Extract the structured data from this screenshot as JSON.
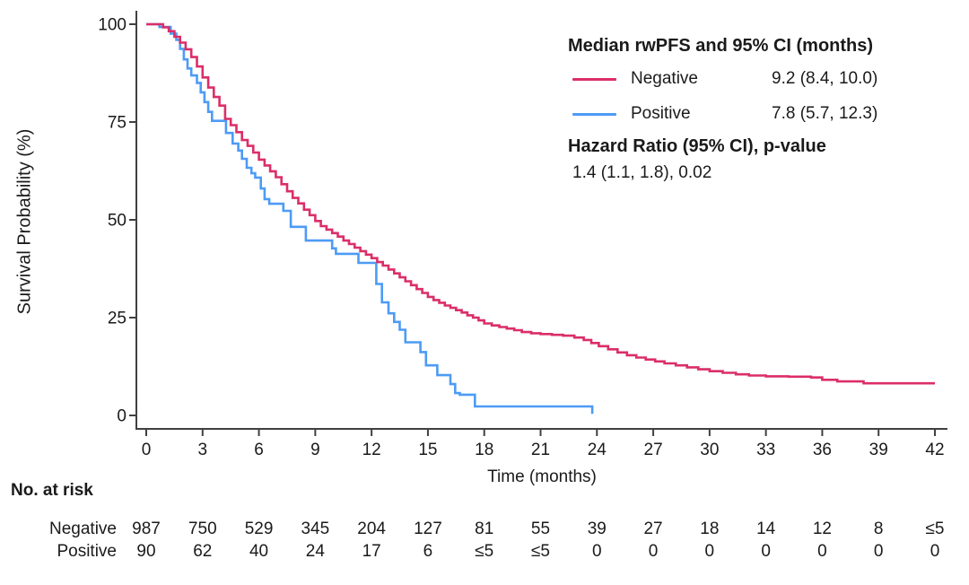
{
  "figure": {
    "background": "#ffffff",
    "text_color": "#1a1a1a",
    "axis_color": "#404040"
  },
  "chart_data": {
    "type": "line",
    "subtype": "kaplan-meier-step-curve",
    "title": "",
    "xlabel": "Time (months)",
    "ylabel": "Survival Probability (%)",
    "xlim": [
      0,
      42
    ],
    "ylim": [
      0,
      100
    ],
    "x_ticks": [
      0,
      3,
      6,
      9,
      12,
      15,
      18,
      21,
      24,
      27,
      30,
      33,
      36,
      39,
      42
    ],
    "y_ticks": [
      0,
      25,
      50,
      75,
      100
    ],
    "grid": false,
    "legend": {
      "position": "top-right",
      "title": "Median rwPFS and 95% CI (months)",
      "entries": [
        {
          "label": "Negative",
          "value": "9.2 (8.4, 10.0)"
        },
        {
          "label": "Positive",
          "value": "7.8 (5.7, 12.3)"
        }
      ],
      "hazard_title": "Hazard Ratio (95% CI), p-value",
      "hazard_value": "1.4 (1.1, 1.8), 0.02"
    },
    "series": [
      {
        "name": "Positive",
        "color": "#4D9BF5",
        "points": [
          [
            0,
            100
          ],
          [
            0.6,
            100
          ],
          [
            0.7,
            99.3
          ],
          [
            1.3,
            97.6
          ],
          [
            1.6,
            96
          ],
          [
            1.8,
            93.7
          ],
          [
            2.0,
            91
          ],
          [
            2.2,
            88.7
          ],
          [
            2.4,
            86.9
          ],
          [
            2.7,
            85
          ],
          [
            2.9,
            82.6
          ],
          [
            3.1,
            80.1
          ],
          [
            3.3,
            77.6
          ],
          [
            3.5,
            75.3
          ],
          [
            4.25,
            72.2
          ],
          [
            4.6,
            69.5
          ],
          [
            4.9,
            67.7
          ],
          [
            5.1,
            65.6
          ],
          [
            5.35,
            63.3
          ],
          [
            5.6,
            61.9
          ],
          [
            5.8,
            60.8
          ],
          [
            6.1,
            58
          ],
          [
            6.3,
            55.3
          ],
          [
            6.55,
            54.1
          ],
          [
            7.3,
            52.3
          ],
          [
            7.7,
            48.2
          ],
          [
            8.5,
            44.7
          ],
          [
            9.9,
            42.7
          ],
          [
            10.1,
            41.3
          ],
          [
            11.3,
            39
          ],
          [
            12.25,
            33.6
          ],
          [
            12.55,
            28.9
          ],
          [
            12.9,
            26.1
          ],
          [
            13.2,
            23.9
          ],
          [
            13.5,
            21.9
          ],
          [
            13.8,
            18.7
          ],
          [
            14.6,
            16.2
          ],
          [
            14.9,
            12.8
          ],
          [
            15.5,
            10.3
          ],
          [
            16.2,
            8
          ],
          [
            16.45,
            5.7
          ],
          [
            16.7,
            5.3
          ],
          [
            17.5,
            2.3
          ],
          [
            23.75,
            2.3
          ],
          [
            23.75,
            0.4
          ]
        ]
      },
      {
        "name": "Negative",
        "color": "#DB2E68",
        "points": [
          [
            0,
            100
          ],
          [
            0.7,
            100
          ],
          [
            0.9,
            99.2
          ],
          [
            1.2,
            98.2
          ],
          [
            1.5,
            96.8
          ],
          [
            1.8,
            95.3
          ],
          [
            2.1,
            93.6
          ],
          [
            2.4,
            91.6
          ],
          [
            2.7,
            89.2
          ],
          [
            3.0,
            86.4
          ],
          [
            3.3,
            83.8
          ],
          [
            3.6,
            81.4
          ],
          [
            3.9,
            79.2
          ],
          [
            4.2,
            75.8
          ],
          [
            4.5,
            74.2
          ],
          [
            4.8,
            72.4
          ],
          [
            5.1,
            70.4
          ],
          [
            5.4,
            68.9
          ],
          [
            5.7,
            67.2
          ],
          [
            6.0,
            65.4
          ],
          [
            6.3,
            63.9
          ],
          [
            6.6,
            62.4
          ],
          [
            6.9,
            60.9
          ],
          [
            7.2,
            59.1
          ],
          [
            7.5,
            57.3
          ],
          [
            7.8,
            55.6
          ],
          [
            8.1,
            54.2
          ],
          [
            8.4,
            52.6
          ],
          [
            8.7,
            51.2
          ],
          [
            9.0,
            49.7
          ],
          [
            9.3,
            48.4
          ],
          [
            9.6,
            47.5
          ],
          [
            9.9,
            46.6
          ],
          [
            10.2,
            45.7
          ],
          [
            10.5,
            44.7
          ],
          [
            10.8,
            43.8
          ],
          [
            11.1,
            42.9
          ],
          [
            11.4,
            42
          ],
          [
            11.7,
            41.1
          ],
          [
            12.0,
            40.2
          ],
          [
            12.3,
            39.2
          ],
          [
            12.6,
            38.3
          ],
          [
            12.9,
            37.3
          ],
          [
            13.2,
            36.3
          ],
          [
            13.5,
            35.3
          ],
          [
            13.8,
            34.3
          ],
          [
            14.1,
            33.3
          ],
          [
            14.4,
            32.3
          ],
          [
            14.7,
            31.3
          ],
          [
            15.0,
            30.3
          ],
          [
            15.3,
            29.5
          ],
          [
            15.6,
            28.8
          ],
          [
            15.9,
            28.1
          ],
          [
            16.2,
            27.5
          ],
          [
            16.5,
            26.9
          ],
          [
            16.8,
            26.3
          ],
          [
            17.1,
            25.6
          ],
          [
            17.4,
            25
          ],
          [
            17.7,
            24.3
          ],
          [
            18.0,
            23.5
          ],
          [
            18.4,
            23
          ],
          [
            18.8,
            22.6
          ],
          [
            19.2,
            22.2
          ],
          [
            19.6,
            21.8
          ],
          [
            20.0,
            21.3
          ],
          [
            20.5,
            21
          ],
          [
            21.0,
            20.8
          ],
          [
            21.6,
            20.6
          ],
          [
            22.2,
            20.4
          ],
          [
            22.8,
            19.9
          ],
          [
            23.3,
            19.3
          ],
          [
            23.7,
            18.5
          ],
          [
            24.1,
            17.7
          ],
          [
            24.6,
            16.9
          ],
          [
            25.1,
            16.1
          ],
          [
            25.6,
            15.4
          ],
          [
            26.1,
            14.8
          ],
          [
            26.6,
            14.3
          ],
          [
            27.1,
            13.8
          ],
          [
            27.6,
            13.3
          ],
          [
            28.2,
            12.8
          ],
          [
            28.8,
            12.3
          ],
          [
            29.4,
            11.8
          ],
          [
            30.0,
            11.3
          ],
          [
            30.7,
            10.9
          ],
          [
            31.4,
            10.5
          ],
          [
            32.1,
            10.2
          ],
          [
            33.0,
            10
          ],
          [
            34.2,
            9.9
          ],
          [
            35.4,
            9.7
          ],
          [
            36.0,
            9.1
          ],
          [
            36.8,
            8.7
          ],
          [
            38.2,
            8.2
          ],
          [
            42,
            8.2
          ]
        ]
      }
    ],
    "risk_table": {
      "title": "No. at risk",
      "rows": [
        {
          "label": "Negative",
          "values": [
            "987",
            "750",
            "529",
            "345",
            "204",
            "127",
            "81",
            "55",
            "39",
            "27",
            "18",
            "14",
            "12",
            "8",
            "≤5"
          ]
        },
        {
          "label": "Positive",
          "values": [
            "90",
            "62",
            "40",
            "24",
            "17",
            "6",
            "≤5",
            "≤5",
            "0",
            "0",
            "0",
            "0",
            "0",
            "0",
            "0"
          ]
        }
      ]
    }
  }
}
